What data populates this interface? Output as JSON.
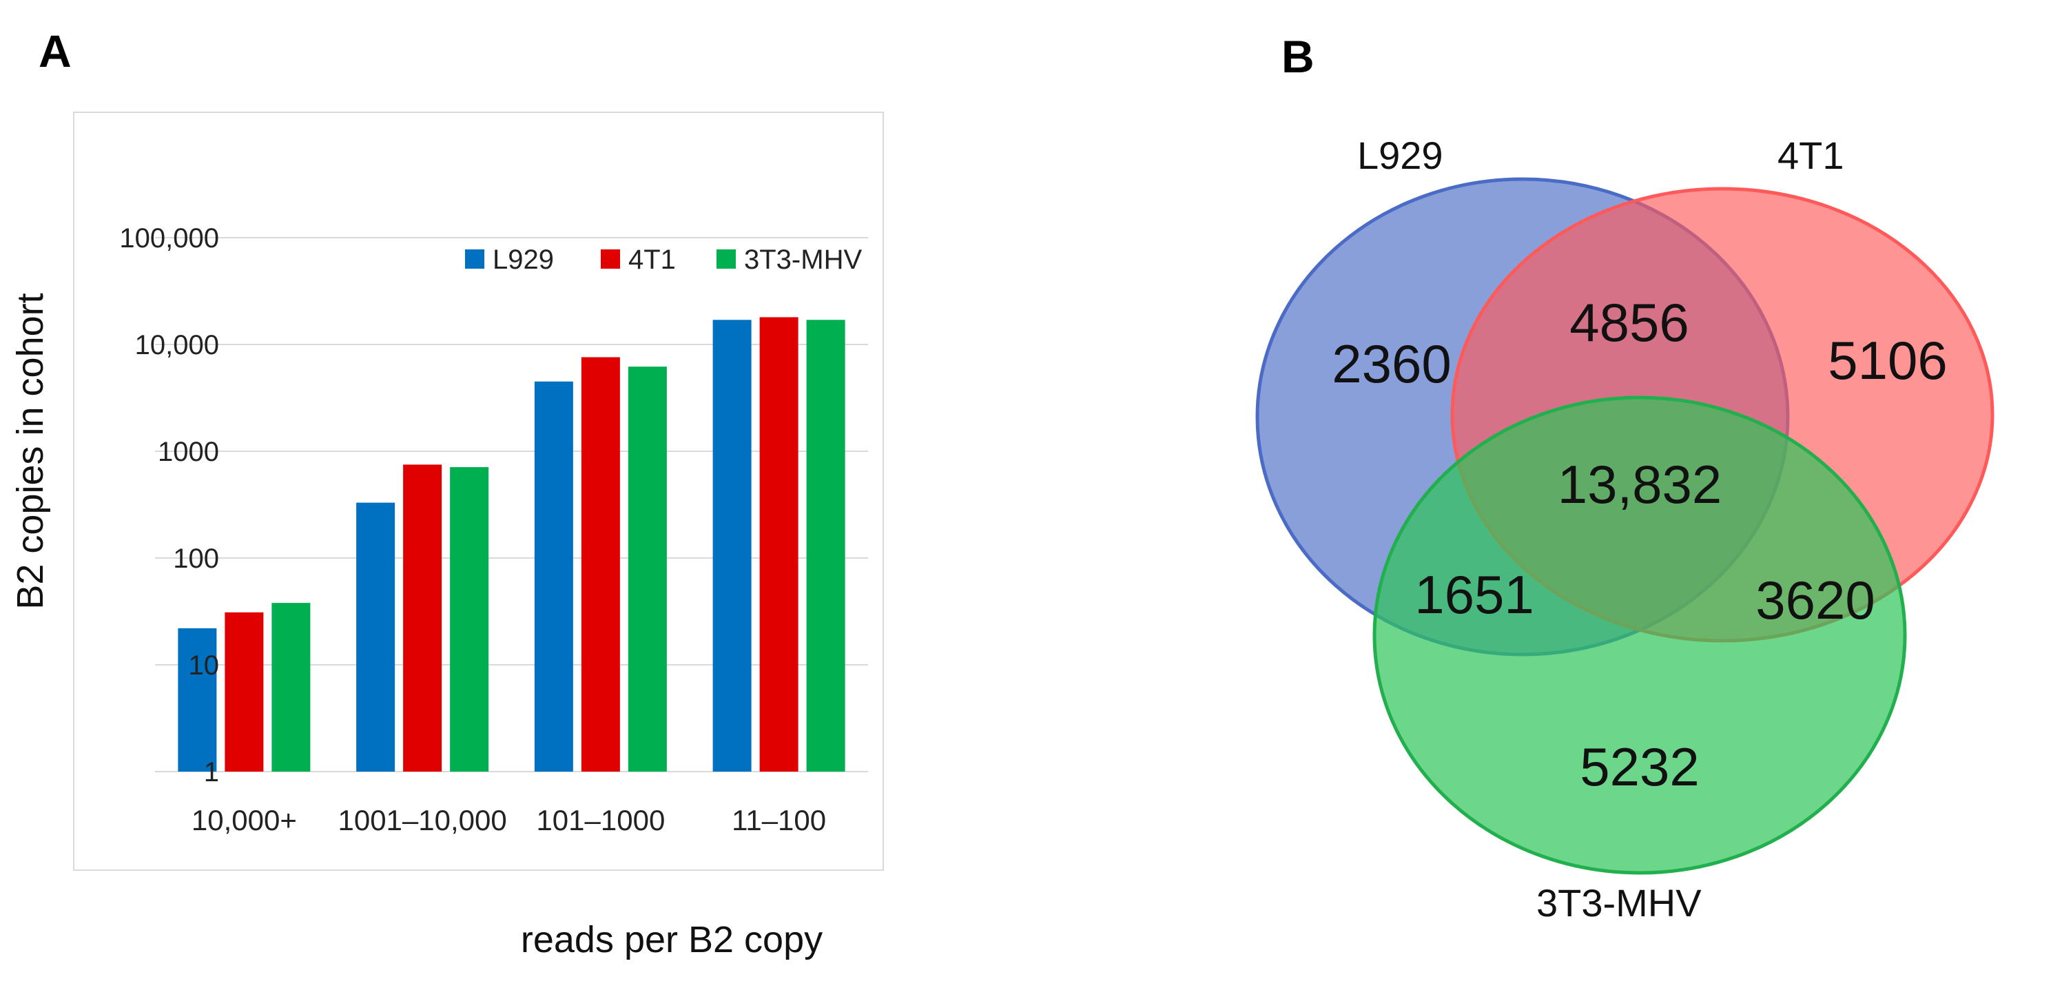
{
  "panels": {
    "a_label": "A",
    "b_label": "B"
  },
  "chart_data": [
    {
      "type": "bar",
      "xlabel": "reads per B2 copy",
      "ylabel": "B2 copies in cohort",
      "yscale": "log",
      "ylim": [
        1,
        100000
      ],
      "yticks": [
        "1",
        "10",
        "100",
        "1000",
        "10,000",
        "100,000"
      ],
      "ytick_values": [
        1,
        10,
        100,
        1000,
        10000,
        100000
      ],
      "grid": true,
      "legend_position": "top-center",
      "categories": [
        "10,000+",
        "1001–10,000",
        "101–1000",
        "11–100"
      ],
      "series": [
        {
          "name": "L929",
          "color": "#0070c0",
          "values": [
            22,
            330,
            4500,
            17000
          ]
        },
        {
          "name": "4T1",
          "color": "#e00000",
          "values": [
            31,
            750,
            7600,
            18000
          ]
        },
        {
          "name": "3T3-MHV",
          "color": "#00b050",
          "values": [
            38,
            710,
            6200,
            17000
          ]
        }
      ]
    },
    {
      "type": "venn",
      "sets": [
        {
          "name": "L929",
          "color": "#4a6cc6",
          "stroke": "#4a6cc6"
        },
        {
          "name": "4T1",
          "color": "#ff5a5a",
          "stroke": "#ff5a5a"
        },
        {
          "name": "3T3-MHV",
          "color": "#2ec45a",
          "stroke": "#22b04e"
        }
      ],
      "regions": {
        "L929_only": "2360",
        "4T1_only": "5106",
        "3T3-MHV_only": "5232",
        "L929_4T1": "4856",
        "L929_3T3-MHV": "1651",
        "4T1_3T3-MHV": "3620",
        "all_three": "13,832"
      }
    }
  ]
}
